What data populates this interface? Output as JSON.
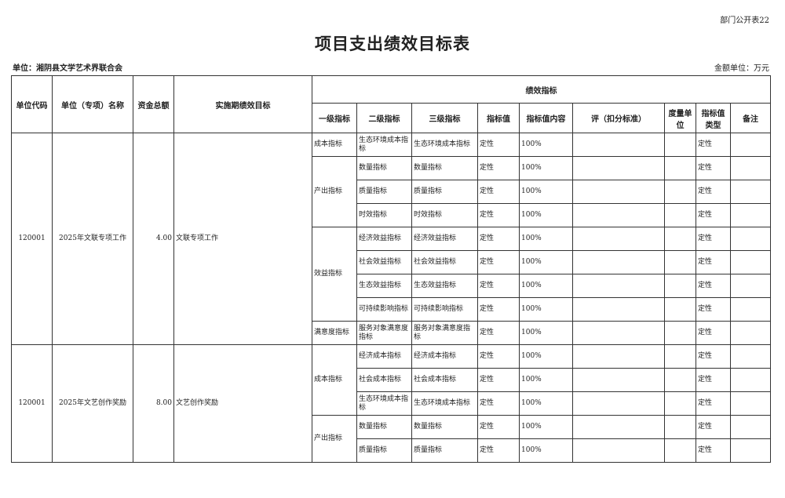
{
  "form_no": "部门公开表22",
  "title": "项目支出绩效目标表",
  "unit_label": "单位：湘阴县文学艺术界联合会",
  "money_unit": "金额单位：万元",
  "headers": {
    "code": "单位代码",
    "name": "单位（专项）名称",
    "total": "资金总额",
    "goal": "实施期绩效目标",
    "perf": "绩效指标",
    "l1": "一级指标",
    "l2": "二级指标",
    "l3": "三级指标",
    "value": "指标值",
    "content": "指标值内容",
    "criteria": "评（扣分标准）",
    "measure": "度量单位",
    "vtype": "指标值类型",
    "note": "备注"
  },
  "projects": [
    {
      "code": "120001",
      "name": "2025年文联专项工作",
      "total": "4.00",
      "goal": "文联专项工作",
      "groups": [
        {
          "l1": "成本指标",
          "rows": [
            {
              "l2": "生态环境成本指标",
              "l3": "生态环境成本指标",
              "value": "定性",
              "content": "100%",
              "vtype": "定性"
            }
          ]
        },
        {
          "l1": "产出指标",
          "rows": [
            {
              "l2": "数量指标",
              "l3": " 数量指标",
              "value": "定性",
              "content": "100%",
              "vtype": "定性"
            },
            {
              "l2": "质量指标",
              "l3": "质量指标",
              "value": "定性",
              "content": "100%",
              "vtype": "定性"
            },
            {
              "l2": "时效指标",
              "l3": "时效指标",
              "value": "定性",
              "content": "100%",
              "vtype": "定性"
            }
          ]
        },
        {
          "l1": "效益指标",
          "rows": [
            {
              "l2": "经济效益指标",
              "l3": "经济效益指标",
              "value": "定性",
              "content": "100%",
              "vtype": "定性"
            },
            {
              "l2": "社会效益指标",
              "l3": "社会效益指标",
              "value": "定性",
              "content": "100%",
              "vtype": "定性"
            },
            {
              "l2": "生态效益指标",
              "l3": "生态效益指标",
              "value": "定性",
              "content": "100%",
              "vtype": "定性"
            },
            {
              "l2": "可持续影响指标",
              "l3": "可持续影响指标",
              "value": "定性",
              "content": "100%",
              "vtype": "定性"
            }
          ]
        },
        {
          "l1": "满意度指标",
          "rows": [
            {
              "l2": "服务对象满意度指标",
              "l3": "服务对象满意度指标",
              "value": "定性",
              "content": "100%",
              "vtype": "定性"
            }
          ]
        }
      ]
    },
    {
      "code": "120001",
      "name": "2025年文艺创作奖励",
      "total": "8.00",
      "goal": "文艺创作奖励",
      "groups": [
        {
          "l1": "成本指标",
          "rows": [
            {
              "l2": "经济成本指标",
              "l3": "经济成本指标",
              "value": "定性",
              "content": "100%",
              "vtype": "定性"
            },
            {
              "l2": "社会成本指标",
              "l3": "社会成本指标",
              "value": "定性",
              "content": "100%",
              "vtype": "定性"
            },
            {
              "l2": "生态环境成本指标",
              "l3": "生态环境成本指标",
              "value": "定性",
              "content": "100%",
              "vtype": "定性"
            }
          ]
        },
        {
          "l1": "产出指标",
          "rows": [
            {
              "l2": "数量指标",
              "l3": " 数量指标",
              "value": "定性",
              "content": "100%",
              "vtype": "定性"
            },
            {
              "l2": "质量指标",
              "l3": "质量指标",
              "value": "定性",
              "content": "100%",
              "vtype": "定性"
            }
          ]
        }
      ]
    }
  ]
}
